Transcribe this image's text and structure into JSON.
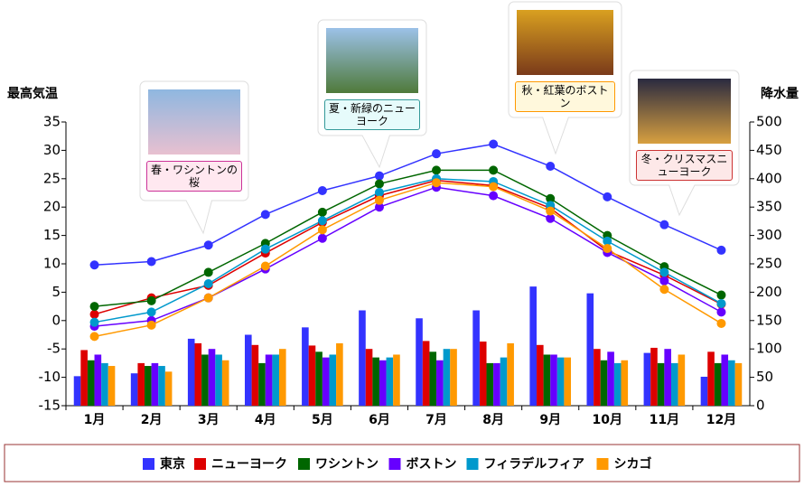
{
  "chart_data": {
    "type": "bar-line",
    "y_label": "最高気温",
    "y2_label": "降水量",
    "categories": [
      "1月",
      "2月",
      "3月",
      "4月",
      "5月",
      "6月",
      "7月",
      "8月",
      "9月",
      "10月",
      "11月",
      "12月"
    ],
    "ylim": [
      -15,
      35
    ],
    "yticks": [
      -15,
      -10,
      -5,
      0,
      5,
      10,
      15,
      20,
      25,
      30,
      35
    ],
    "y2lim": [
      0,
      500
    ],
    "y2ticks": [
      0,
      50,
      100,
      150,
      200,
      250,
      300,
      350,
      400,
      450,
      500
    ],
    "series": [
      {
        "name": "東京",
        "color": "#3333ff",
        "values": [
          9.8,
          10.4,
          13.3,
          18.7,
          22.9,
          25.5,
          29.4,
          31.1,
          27.2,
          21.8,
          16.9,
          12.4
        ],
        "precipitation": [
          52,
          57,
          118,
          125,
          138,
          168,
          154,
          168,
          210,
          198,
          93,
          51
        ]
      },
      {
        "name": "ニューヨーク",
        "color": "#dd0000",
        "values": [
          1.1,
          4.0,
          6.2,
          11.9,
          17.3,
          22.0,
          24.7,
          23.8,
          19.8,
          12.3,
          8.0,
          2.9
        ],
        "precipitation": [
          98,
          75,
          110,
          107,
          106,
          100,
          114,
          113,
          107,
          100,
          102,
          95
        ]
      },
      {
        "name": "ワシントン",
        "color": "#006600",
        "values": [
          2.5,
          3.5,
          8.5,
          13.6,
          19.1,
          24.1,
          26.5,
          26.5,
          21.5,
          15.0,
          9.5,
          4.5
        ],
        "precipitation": [
          80,
          70,
          90,
          75,
          95,
          85,
          95,
          75,
          90,
          80,
          75,
          75
        ]
      },
      {
        "name": "ボストン",
        "color": "#6600ff",
        "values": [
          -1.0,
          0.0,
          4.0,
          9.1,
          14.5,
          20.0,
          23.5,
          22.0,
          18.0,
          12.0,
          7.0,
          1.5
        ],
        "precipitation": [
          90,
          75,
          100,
          90,
          85,
          80,
          80,
          75,
          90,
          95,
          100,
          90
        ]
      },
      {
        "name": "フィラデルフィア",
        "color": "#0099cc",
        "values": [
          -0.3,
          1.5,
          6.5,
          12.6,
          17.6,
          22.6,
          25.0,
          24.5,
          20.3,
          14.0,
          8.5,
          3.0
        ],
        "precipitation": [
          75,
          70,
          90,
          90,
          90,
          85,
          100,
          85,
          85,
          75,
          75,
          80
        ]
      },
      {
        "name": "シカゴ",
        "color": "#ff9900",
        "values": [
          -2.8,
          -0.8,
          4.0,
          9.6,
          16.0,
          21.2,
          24.3,
          23.6,
          19.3,
          12.7,
          5.5,
          -0.5
        ],
        "precipitation": [
          70,
          60,
          80,
          100,
          110,
          90,
          100,
          110,
          85,
          80,
          90,
          75
        ]
      }
    ],
    "annotations": [
      "春・ワシントンの桜",
      "夏・新緑のニューヨーク",
      "秋・紅葉のボストン",
      "冬・クリスマスニューヨーク"
    ]
  }
}
